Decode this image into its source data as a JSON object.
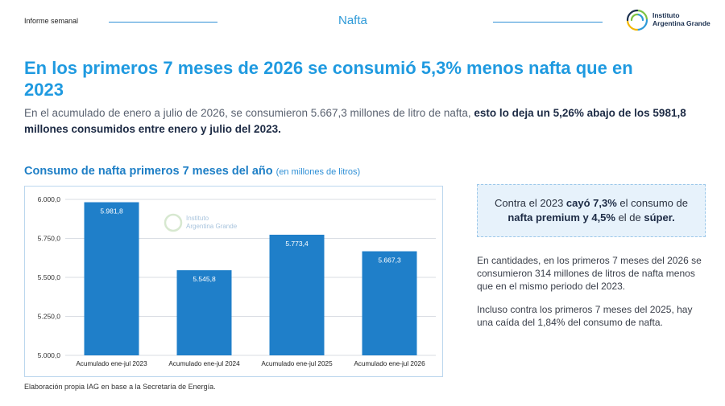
{
  "header": {
    "report_label": "Informe semanal",
    "section": "Nafta",
    "logo_line1": "Instituto",
    "logo_line2": "Argentina Grande",
    "accent_color": "#2e9ad8"
  },
  "headline": "En los primeros 7 meses de 2026 se consumió 5,3% menos nafta que en 2023",
  "subtitle": {
    "plain": "En el acumulado de enero a julio de 2026, se consumieron 5.667,3 millones de litro de nafta, ",
    "bold": "esto lo deja un 5,26% abajo de los 5981,8 millones consumidos entre enero y julio del 2023."
  },
  "chart_title": {
    "main": "Consumo de nafta primeros 7 meses del año",
    "unit": "(en millones de litros)"
  },
  "chart_data": {
    "type": "bar",
    "categories": [
      "Acumulado ene-jul 2023",
      "Acumulado ene-jul 2024",
      "Acumulado ene-jul 2025",
      "Acumulado ene-jul 2026"
    ],
    "values": [
      5981.8,
      5545.8,
      5773.4,
      5667.3
    ],
    "value_labels": [
      "5.981,8",
      "5.545,8",
      "5.773,4",
      "5.667,3"
    ],
    "ylim": [
      5000,
      6000
    ],
    "yticks": [
      5000,
      5250,
      5500,
      5750,
      6000
    ],
    "ytick_labels": [
      "5.000,0",
      "5.250,0",
      "5.500,0",
      "5.750,0",
      "6.000,0"
    ],
    "bar_color": "#1f7fc9",
    "grid": true,
    "watermark_line1": "Instituto",
    "watermark_line2": "Argentina Grande"
  },
  "source": "Elaboración propia IAG en base a la Secretaría de Energía.",
  "callout": {
    "t1": "Contra el 2023 ",
    "b1": "cayó 7,3%",
    "t2": " el consumo de ",
    "b2": "nafta premium y 4,5%",
    "t3": " el de ",
    "b3": "súper."
  },
  "paragraph1": "En cantidades, en los primeros 7 meses del 2026 se consumieron 314 millones de litros de nafta menos que en el mismo periodo del 2023.",
  "paragraph2": "Incluso contra los primeros 7 meses del 2025, hay una caída del 1,84% del consumo de nafta."
}
